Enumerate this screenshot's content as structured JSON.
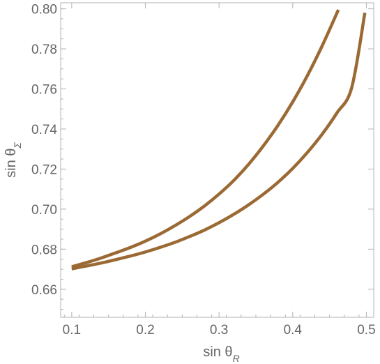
{
  "chart_data": {
    "type": "line",
    "title": "",
    "xlabel": {
      "base": "sin θ",
      "sub": "R"
    },
    "ylabel": {
      "base": "sin θ",
      "sub": "Σ"
    },
    "xlim": [
      0.085,
      0.51
    ],
    "ylim": [
      0.646,
      0.803
    ],
    "x_ticks": [
      0.1,
      0.2,
      0.3,
      0.4,
      0.5
    ],
    "x_tick_labels": [
      "0.1",
      "0.2",
      "0.3",
      "0.4",
      "0.5"
    ],
    "y_ticks": [
      0.66,
      0.68,
      0.7,
      0.72,
      0.74,
      0.76,
      0.78,
      0.8
    ],
    "y_tick_labels": [
      "0.66",
      "0.68",
      "0.70",
      "0.72",
      "0.74",
      "0.76",
      "0.78",
      "0.80"
    ],
    "grid": false,
    "line_color": "#9b6a34",
    "series": [
      {
        "x": [
          0.1,
          0.12,
          0.14,
          0.16,
          0.18,
          0.2,
          0.22,
          0.24,
          0.26,
          0.28,
          0.3,
          0.32,
          0.34,
          0.36,
          0.38,
          0.4,
          0.42,
          0.44,
          0.462
        ],
        "y": [
          0.6712,
          0.6733,
          0.6756,
          0.6782,
          0.6809,
          0.684,
          0.6876,
          0.6917,
          0.6963,
          0.7015,
          0.7075,
          0.7143,
          0.7223,
          0.7315,
          0.7418,
          0.7535,
          0.7667,
          0.7815,
          0.7995
        ]
      },
      {
        "x": [
          0.1,
          0.12,
          0.14,
          0.16,
          0.18,
          0.2,
          0.22,
          0.24,
          0.26,
          0.28,
          0.3,
          0.32,
          0.34,
          0.36,
          0.38,
          0.4,
          0.42,
          0.44,
          0.46,
          0.48,
          0.498
        ],
        "y": [
          0.6702,
          0.6716,
          0.6731,
          0.6748,
          0.6766,
          0.6786,
          0.6809,
          0.6834,
          0.6863,
          0.6895,
          0.6932,
          0.6974,
          0.7021,
          0.7074,
          0.7134,
          0.7203,
          0.7283,
          0.7374,
          0.748,
          0.7605,
          0.798
        ]
      }
    ]
  }
}
